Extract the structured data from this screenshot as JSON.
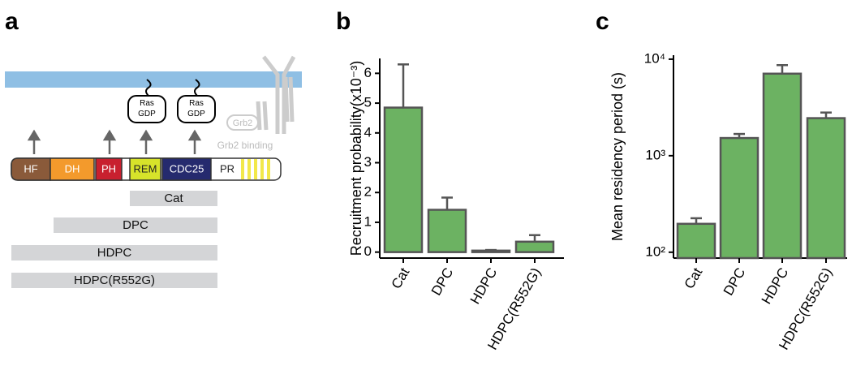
{
  "panel_a": {
    "label": "a",
    "domains": [
      "HF",
      "DH",
      "PH",
      "REM",
      "CDC25",
      "PR"
    ],
    "ras": [
      "Ras\nGDP",
      "Ras\nGDP"
    ],
    "grb2": "Grb2",
    "grb2_binding": "Grb2 binding",
    "constructs": [
      "Cat",
      "DPC",
      "HDPC",
      "HDPC(R552G)"
    ]
  },
  "chart_data": [
    {
      "label": "b",
      "type": "bar",
      "ylabel": "Recruitment probability(x10⁻³)",
      "categories": [
        "Cat",
        "DPC",
        "HDPC",
        "HDPC(R552G)"
      ],
      "values": [
        4.85,
        1.42,
        0.05,
        0.35
      ],
      "errors": [
        1.45,
        0.41,
        0.02,
        0.22
      ],
      "color": "#6cb262",
      "ylim": [
        -0.2,
        6.5
      ],
      "yticks": [
        0,
        1,
        2,
        3,
        4,
        5,
        6
      ]
    },
    {
      "label": "c",
      "type": "bar",
      "ylabel": "Mean residency period (s)",
      "log_scale": true,
      "categories": [
        "Cat",
        "DPC",
        "HDPC",
        "HDPC(R552G)"
      ],
      "values": [
        197,
        1525,
        7080,
        2450
      ],
      "errors": [
        28,
        155,
        1600,
        350
      ],
      "color": "#6cb262",
      "ylim": [
        87,
        11000
      ],
      "yticks": [
        {
          "value": 100,
          "label": "10²"
        },
        {
          "value": 1000,
          "label": "10³"
        },
        {
          "value": 10000,
          "label": "10⁴"
        }
      ]
    }
  ]
}
